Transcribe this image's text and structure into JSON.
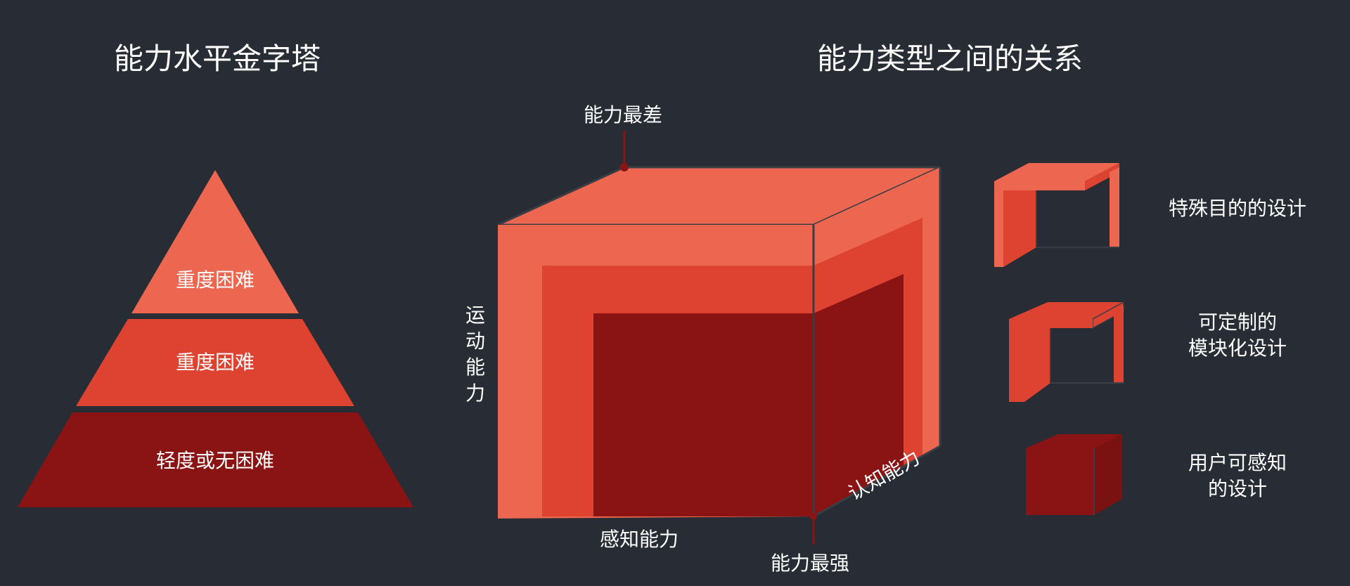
{
  "pyramid": {
    "title": "能力水平金字塔",
    "tiers": [
      {
        "label": "重度困难",
        "color": "#ec6650"
      },
      {
        "label": "重度困难",
        "color": "#de4231"
      },
      {
        "label": "轻度或无困难",
        "color": "#8a1414"
      }
    ]
  },
  "cube": {
    "title": "能力类型之间的关系",
    "top_label": "能力最差",
    "bottom_label": "能力最强",
    "axis_motor": "运动能力",
    "axis_perception": "感知能力",
    "axis_cognition": "认知能力",
    "colors": {
      "outer": "#ec6650",
      "middle": "#de4231",
      "inner": "#8a1414",
      "edge": "#3a3d44"
    }
  },
  "legend": [
    {
      "line1": "特殊目的的设计",
      "line2": ""
    },
    {
      "line1": "可定制的",
      "line2": "模块化设计"
    },
    {
      "line1": "用户可感知",
      "line2": "的设计"
    }
  ]
}
